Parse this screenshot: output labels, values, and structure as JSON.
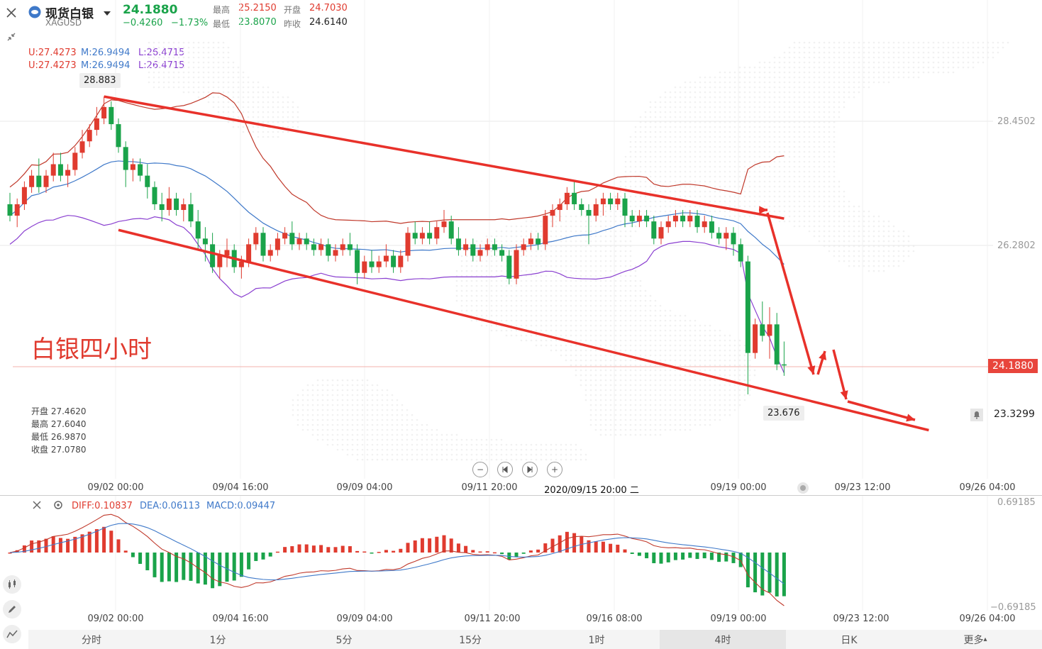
{
  "header": {
    "name": "现货白银",
    "code": "XAGUSD",
    "price": "24.1880",
    "change": "−0.4260",
    "change_pct": "−1.73%",
    "high_label": "最高",
    "high": "25.2150",
    "open_label": "开盘",
    "open": "24.7030",
    "low_label": "最低",
    "low": "23.8070",
    "prev_label": "昨收",
    "prev": "24.6140"
  },
  "boll": {
    "u": "U:27.4273",
    "m": "M:26.9494",
    "l": "L:26.4715",
    "u2": "U:27.4273",
    "m2": "M:26.9494",
    "l2": "L:26.4715"
  },
  "annotation": "白银四小时",
  "crosshair_info": {
    "open_label": "开盘",
    "open": "27.4620",
    "high_label": "最高",
    "high": "27.6040",
    "low_label": "最低",
    "low": "26.9870",
    "close_label": "收盘",
    "close": "27.0780"
  },
  "price_axis": [
    "28.4502",
    "26.2802"
  ],
  "current_price_tag": "24.1880",
  "alert_price": "23.3299",
  "high_marker": "28.883",
  "low_marker": "23.676",
  "x_axis_main": [
    "09/02 00:00",
    "09/04 16:00",
    "09/09 04:00",
    "09/11 20:00",
    "2020/09/15 20:00 二",
    "09/19 00:00",
    "09/23 12:00",
    "09/26 04:00"
  ],
  "x_axis_macd": [
    "09/02 00:00",
    "09/04 16:00",
    "09/09 04:00",
    "09/11 20:00",
    "09/16 08:00",
    "09/19 00:00",
    "09/23 12:00",
    "09/26 04:00"
  ],
  "macd": {
    "diff": "DIFF:0.10837",
    "dea": "DEA:0.06113",
    "macd": "MACD:0.09447",
    "axis_top": "0.69185",
    "axis_bottom": "−0.69185"
  },
  "tabs": [
    "分时",
    "1分",
    "5分",
    "15分",
    "1时",
    "4时",
    "日K",
    "更多"
  ],
  "active_tab": "4时",
  "icons": {
    "close": "close-icon",
    "collapse": "collapse-icon",
    "logo": "silver-logo-icon",
    "dropdown": "caret-down-icon",
    "zoom_out": "zoom-out-icon",
    "first": "skip-start-icon",
    "last": "skip-end-icon",
    "zoom_in": "zoom-in-icon",
    "bell": "bell-icon",
    "settings": "gear-icon",
    "candles": "candles-icon",
    "pen": "pen-icon",
    "indicator": "indicator-icon"
  },
  "chart_data": {
    "type": "candlestick",
    "title": "",
    "timeframe": "4时",
    "y_ticks": [
      28.4502,
      26.2802
    ],
    "candles": [
      [
        27.0,
        27.2,
        26.7,
        26.8
      ],
      [
        26.8,
        27.1,
        26.6,
        27.0
      ],
      [
        27.0,
        27.4,
        26.9,
        27.3
      ],
      [
        27.3,
        27.6,
        27.2,
        27.5
      ],
      [
        27.5,
        27.8,
        27.2,
        27.3
      ],
      [
        27.3,
        27.6,
        27.2,
        27.5
      ],
      [
        27.5,
        27.9,
        27.4,
        27.7
      ],
      [
        27.7,
        27.9,
        27.4,
        27.5
      ],
      [
        27.5,
        27.7,
        27.3,
        27.6
      ],
      [
        27.6,
        28.0,
        27.5,
        27.9
      ],
      [
        27.9,
        28.3,
        27.8,
        28.1
      ],
      [
        28.1,
        28.4,
        28.0,
        28.3
      ],
      [
        28.3,
        28.7,
        28.2,
        28.5
      ],
      [
        28.5,
        28.883,
        28.4,
        28.7
      ],
      [
        28.7,
        28.8,
        28.3,
        28.4
      ],
      [
        28.4,
        28.5,
        27.9,
        28.0
      ],
      [
        28.0,
        28.1,
        27.3,
        27.6
      ],
      [
        27.6,
        27.8,
        27.4,
        27.7
      ],
      [
        27.7,
        27.8,
        27.4,
        27.5
      ],
      [
        27.5,
        27.7,
        27.1,
        27.3
      ],
      [
        27.3,
        27.4,
        26.9,
        27.0
      ],
      [
        27.0,
        27.2,
        26.7,
        26.9
      ],
      [
        26.9,
        27.3,
        26.8,
        27.1
      ],
      [
        27.1,
        27.2,
        26.8,
        26.9
      ],
      [
        26.9,
        27.1,
        26.7,
        27.0
      ],
      [
        27.0,
        27.2,
        26.6,
        26.7
      ],
      [
        26.7,
        26.9,
        26.2,
        26.4
      ],
      [
        26.4,
        26.6,
        26.0,
        26.3
      ],
      [
        26.3,
        26.5,
        25.8,
        25.9
      ],
      [
        25.9,
        26.2,
        25.7,
        26.1
      ],
      [
        26.1,
        26.4,
        25.9,
        26.2
      ],
      [
        26.2,
        26.3,
        25.8,
        25.9
      ],
      [
        25.9,
        26.1,
        25.7,
        26.0
      ],
      [
        26.0,
        26.4,
        25.9,
        26.3
      ],
      [
        26.3,
        26.6,
        26.2,
        26.5
      ],
      [
        26.5,
        26.6,
        26.0,
        26.1
      ],
      [
        26.1,
        26.3,
        26.0,
        26.2
      ],
      [
        26.2,
        26.5,
        26.1,
        26.4
      ],
      [
        26.4,
        26.6,
        26.3,
        26.5
      ],
      [
        26.5,
        26.7,
        26.2,
        26.3
      ],
      [
        26.3,
        26.5,
        26.2,
        26.4
      ],
      [
        26.4,
        26.5,
        26.2,
        26.3
      ],
      [
        26.3,
        26.4,
        26.1,
        26.2
      ],
      [
        26.2,
        26.4,
        26.1,
        26.3
      ],
      [
        26.3,
        26.4,
        26.0,
        26.1
      ],
      [
        26.1,
        26.3,
        26.0,
        26.2
      ],
      [
        26.2,
        26.4,
        26.1,
        26.3
      ],
      [
        26.3,
        26.5,
        26.1,
        26.2
      ],
      [
        26.2,
        26.3,
        25.6,
        25.8
      ],
      [
        25.8,
        26.1,
        25.7,
        26.0
      ],
      [
        26.0,
        26.2,
        25.8,
        25.9
      ],
      [
        25.9,
        26.1,
        25.8,
        26.0
      ],
      [
        26.0,
        26.3,
        25.9,
        26.1
      ],
      [
        26.1,
        26.2,
        25.8,
        25.9
      ],
      [
        25.9,
        26.2,
        25.8,
        26.1
      ],
      [
        26.1,
        26.6,
        26.0,
        26.5
      ],
      [
        26.5,
        26.7,
        26.3,
        26.4
      ],
      [
        26.4,
        26.6,
        26.3,
        26.5
      ],
      [
        26.5,
        26.7,
        26.3,
        26.4
      ],
      [
        26.4,
        26.7,
        26.3,
        26.6
      ],
      [
        26.6,
        26.9,
        26.5,
        26.7
      ],
      [
        26.7,
        26.8,
        26.3,
        26.4
      ],
      [
        26.4,
        26.6,
        26.1,
        26.2
      ],
      [
        26.2,
        26.4,
        26.1,
        26.3
      ],
      [
        26.3,
        26.4,
        26.0,
        26.1
      ],
      [
        26.1,
        26.3,
        26.0,
        26.2
      ],
      [
        26.2,
        26.4,
        26.1,
        26.3
      ],
      [
        26.3,
        26.4,
        26.1,
        26.2
      ],
      [
        26.2,
        26.3,
        26.0,
        26.1
      ],
      [
        26.1,
        26.2,
        25.6,
        25.7
      ],
      [
        25.7,
        26.3,
        25.6,
        26.2
      ],
      [
        26.2,
        26.4,
        26.1,
        26.3
      ],
      [
        26.3,
        26.5,
        26.2,
        26.4
      ],
      [
        26.4,
        26.5,
        26.2,
        26.3
      ],
      [
        26.3,
        26.9,
        26.2,
        26.8
      ],
      [
        26.8,
        27.0,
        26.6,
        26.9
      ],
      [
        26.9,
        27.1,
        26.7,
        27.0
      ],
      [
        27.0,
        27.3,
        26.9,
        27.2
      ],
      [
        27.2,
        27.4,
        26.9,
        27.0
      ],
      [
        27.0,
        27.1,
        26.8,
        26.9
      ],
      [
        26.9,
        27.0,
        26.3,
        26.8
      ],
      [
        26.8,
        27.1,
        26.7,
        27.0
      ],
      [
        27.0,
        27.2,
        26.8,
        27.1
      ],
      [
        27.1,
        27.2,
        26.9,
        27.0
      ],
      [
        27.0,
        27.2,
        26.9,
        27.1
      ],
      [
        27.1,
        27.2,
        26.6,
        26.8
      ],
      [
        26.8,
        26.9,
        26.6,
        26.7
      ],
      [
        26.7,
        26.9,
        26.6,
        26.8
      ],
      [
        26.8,
        26.9,
        26.6,
        26.7
      ],
      [
        26.7,
        26.8,
        26.3,
        26.4
      ],
      [
        26.4,
        26.7,
        26.3,
        26.6
      ],
      [
        26.6,
        26.8,
        26.5,
        26.7
      ],
      [
        26.7,
        26.9,
        26.6,
        26.8
      ],
      [
        26.8,
        26.9,
        26.6,
        26.7
      ],
      [
        26.7,
        26.9,
        26.6,
        26.8
      ],
      [
        26.8,
        26.9,
        26.5,
        26.6
      ],
      [
        26.6,
        26.8,
        26.5,
        26.7
      ],
      [
        26.7,
        26.8,
        26.4,
        26.5
      ],
      [
        26.5,
        26.6,
        26.3,
        26.4
      ],
      [
        26.4,
        26.6,
        26.2,
        26.5
      ],
      [
        26.5,
        26.6,
        26.1,
        26.3
      ],
      [
        26.3,
        26.4,
        25.9,
        26.0
      ],
      [
        26.0,
        26.1,
        23.676,
        24.4
      ],
      [
        24.4,
        25.0,
        24.3,
        24.9
      ],
      [
        24.9,
        25.3,
        24.6,
        24.7
      ],
      [
        24.7,
        25.2,
        24.3,
        24.9
      ],
      [
        24.9,
        25.1,
        24.1,
        24.2
      ],
      [
        24.2,
        24.6,
        24.0,
        24.188
      ]
    ],
    "trendlines": [
      {
        "from": [
          13,
          28.883
        ],
        "to": [
          107,
          26.75
        ]
      },
      {
        "from": [
          15,
          26.55
        ],
        "to": [
          127,
          23.05
        ]
      }
    ],
    "boll": {
      "upper": 27.4273,
      "middle": 26.9494,
      "lower": 26.4715
    },
    "macd": {
      "diff": 0.10837,
      "dea": 0.06113,
      "macd": 0.09447,
      "range": [
        -0.69185,
        0.69185
      ]
    }
  }
}
